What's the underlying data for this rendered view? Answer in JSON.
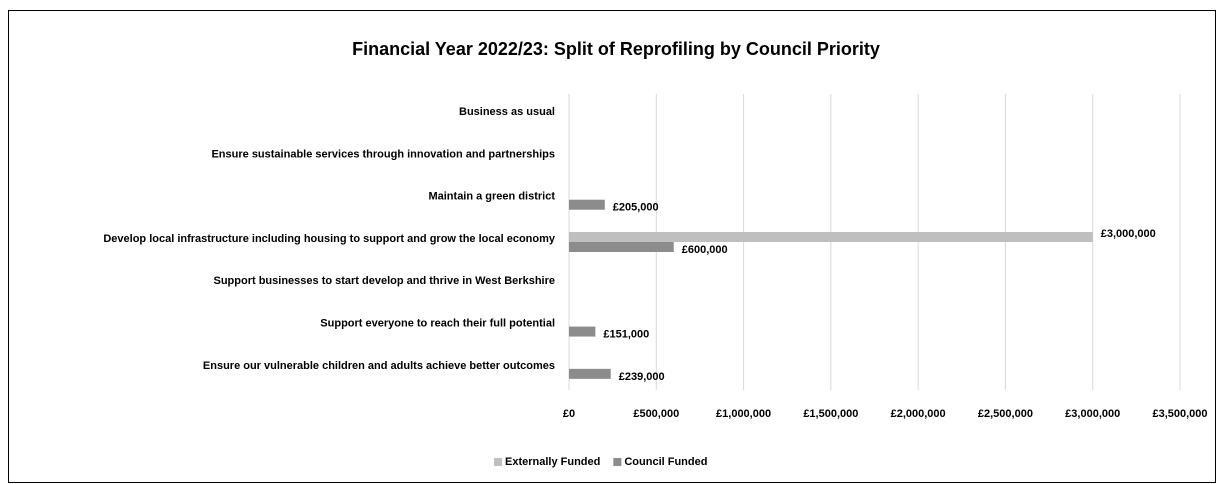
{
  "chart_data": {
    "type": "bar",
    "orientation": "horizontal",
    "title": "Financial Year 2022/23:  Split of Reprofiling by Council Priority",
    "categories": [
      "Business as usual",
      "Ensure sustainable services through innovation and partnerships",
      "Maintain a green district",
      "Develop local infrastructure including housing to support and grow the local economy",
      "Support businesses to start develop and thrive in West Berkshire",
      "Support everyone to reach their full potential",
      "Ensure our vulnerable children and adults achieve better outcomes"
    ],
    "series": [
      {
        "name": "Externally Funded",
        "color": "#bfbfbf",
        "values": [
          null,
          null,
          null,
          3000000,
          null,
          null,
          null
        ],
        "value_labels": [
          null,
          null,
          null,
          "£3,000,000",
          null,
          null,
          null
        ]
      },
      {
        "name": "Council Funded",
        "color": "#8c8c8c",
        "values": [
          null,
          null,
          205000,
          600000,
          null,
          151000,
          239000
        ],
        "value_labels": [
          null,
          null,
          "£205,000",
          "£600,000",
          null,
          "£151,000",
          "£239,000"
        ]
      }
    ],
    "xlim": [
      0,
      3500000
    ],
    "xticks": [
      {
        "value": 0,
        "label": "£0"
      },
      {
        "value": 500000,
        "label": "£500,000"
      },
      {
        "value": 1000000,
        "label": "£1,000,000"
      },
      {
        "value": 1500000,
        "label": "£1,500,000"
      },
      {
        "value": 2000000,
        "label": "£2,000,000"
      },
      {
        "value": 2500000,
        "label": "£2,500,000"
      },
      {
        "value": 3000000,
        "label": "£3,000,000"
      },
      {
        "value": 3500000,
        "label": "£3,500,000"
      }
    ],
    "grid": true,
    "legend": "bottom"
  }
}
